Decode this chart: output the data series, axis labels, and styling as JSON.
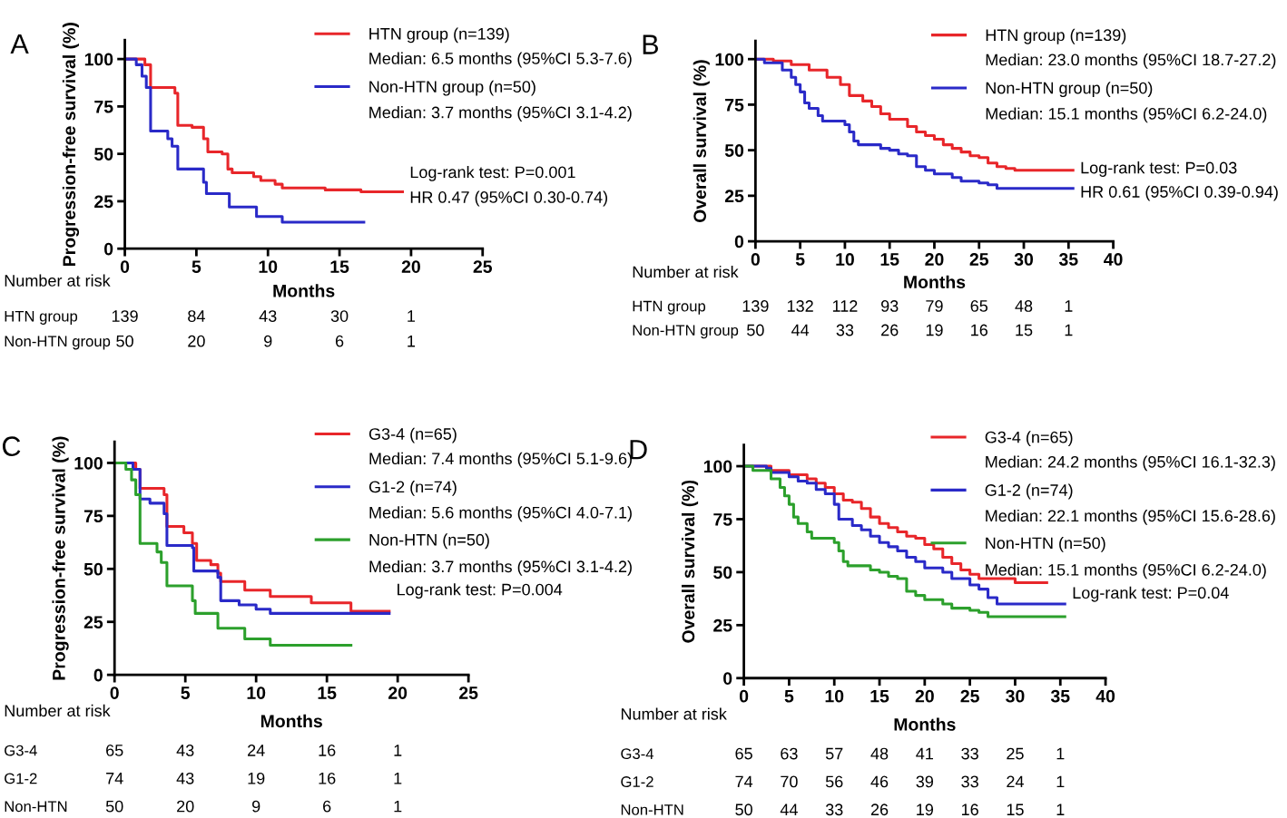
{
  "chart_data": [
    {
      "type": "step",
      "title": "A",
      "xlabel": "Months",
      "ylabel": "Progression-free survival (%)",
      "xlim": [
        0,
        25
      ],
      "xticks": [
        0,
        5,
        10,
        15,
        20,
        25
      ],
      "ylim": [
        0,
        110
      ],
      "yticks": [
        0,
        25,
        50,
        75,
        100
      ],
      "legend": "top right",
      "series": [
        {
          "name": "HTN group (n=139)",
          "color": "#e8262a",
          "x": [
            0,
            1.4,
            1.5,
            1.8,
            3.5,
            3.7,
            4.7,
            5.5,
            5.8,
            6.8,
            7.2,
            7.5,
            9,
            9.5,
            10.5,
            11,
            14,
            16.5,
            19.4
          ],
          "values": [
            100,
            97,
            97,
            85,
            82,
            65,
            64,
            58,
            51,
            50,
            42,
            40,
            38,
            36,
            34,
            32,
            31,
            30,
            30
          ]
        },
        {
          "name": "Non-HTN group (n=50)",
          "color": "#2a2ac8",
          "x": [
            0,
            0.8,
            1.2,
            1.5,
            1.8,
            3,
            3.3,
            3.7,
            5.5,
            5.7,
            7.3,
            9.2,
            11,
            16.7
          ],
          "values": [
            100,
            97,
            91,
            85,
            62,
            58,
            54,
            42,
            35,
            29,
            22,
            17,
            14,
            14
          ]
        }
      ],
      "annotations": [
        "Median: 6.5 months (95%CI 5.3-7.6)",
        "Median: 3.7 months (95%CI 3.1-4.2)",
        "Log-rank test: P=0.001",
        "HR 0.47 (95%CI 0.30-0.74)",
        "Number at risk",
        "HTN group",
        "139",
        "84",
        "43",
        "30",
        "1",
        "Non-HTN group",
        "50",
        "20",
        "9",
        "6",
        "1"
      ]
    },
    {
      "type": "step",
      "title": "B",
      "xlabel": "Months",
      "ylabel": "Overall survival (%)",
      "xlim": [
        0,
        40
      ],
      "xticks": [
        0,
        5,
        10,
        15,
        20,
        25,
        30,
        35,
        40
      ],
      "ylim": [
        0,
        110
      ],
      "yticks": [
        0,
        25,
        50,
        75,
        100
      ],
      "legend": "top right",
      "series": [
        {
          "name": "HTN group (n=139)",
          "color": "#e8262a",
          "x": [
            0,
            2,
            4,
            6,
            8,
            9.5,
            10.5,
            12,
            13,
            14,
            15,
            17,
            18,
            19,
            20,
            21,
            22,
            23,
            24,
            25,
            26,
            27,
            28,
            29,
            35.5
          ],
          "values": [
            100,
            99,
            97,
            94,
            90,
            86,
            80,
            77,
            74,
            70,
            67,
            63,
            60,
            58,
            56,
            53,
            51,
            49,
            47,
            46,
            43,
            41,
            40,
            39,
            39
          ]
        },
        {
          "name": "Non-HTN group (n=50)",
          "color": "#2a2ac8",
          "x": [
            0,
            1,
            3,
            4,
            4.5,
            5,
            5.5,
            6,
            7,
            7.5,
            10,
            10.5,
            11,
            11.5,
            14,
            15,
            16,
            17,
            18,
            19,
            20,
            22,
            23,
            25,
            26,
            27,
            35.5
          ],
          "values": [
            100,
            98,
            94,
            90,
            86,
            82,
            76,
            73,
            69,
            66,
            64,
            60,
            55,
            53,
            51,
            50,
            48,
            47,
            41,
            39,
            37,
            35,
            33,
            32,
            31,
            29,
            29
          ]
        }
      ],
      "annotations": [
        "Median: 23.0 months (95%CI 18.7-27.2)",
        "Median: 15.1 months (95%CI 6.2-24.0)",
        "Log-rank test: P=0.03",
        "HR 0.61 (95%CI 0.39-0.94)",
        "Number at risk",
        "HTN group",
        "139",
        "132",
        "112",
        "93",
        "79",
        "65",
        "48",
        "1",
        "Non-HTN group",
        "50",
        "44",
        "33",
        "26",
        "19",
        "16",
        "15",
        "1"
      ]
    },
    {
      "type": "step",
      "title": "C",
      "xlabel": "Months",
      "ylabel": "Progression-free survival (%)",
      "xlim": [
        0,
        25
      ],
      "xticks": [
        0,
        5,
        10,
        15,
        20,
        25
      ],
      "ylim": [
        0,
        110
      ],
      "yticks": [
        0,
        25,
        50,
        75,
        100
      ],
      "legend": "top right",
      "series": [
        {
          "name": "G3-4 (n=65)",
          "color": "#e8262a",
          "x": [
            0,
            1.5,
            1.8,
            3.5,
            3.7,
            4.9,
            5.5,
            5.8,
            6.8,
            7.3,
            7.5,
            9.2,
            11,
            13.9,
            16.7,
            19.4
          ],
          "values": [
            100,
            97,
            88,
            85,
            70,
            67,
            62,
            54,
            52,
            48,
            44,
            40,
            37,
            34,
            30,
            30
          ]
        },
        {
          "name": "G1-2 (n=74)",
          "color": "#2a2ac8",
          "x": [
            0,
            1.3,
            1.8,
            2.5,
            3.5,
            3.7,
            5.5,
            5.6,
            7.3,
            7.5,
            8.8,
            10,
            11,
            19.4
          ],
          "values": [
            100,
            97,
            83,
            81,
            76,
            61,
            60,
            49,
            46,
            35,
            33,
            31,
            29,
            29
          ]
        },
        {
          "name": "Non-HTN (n=50)",
          "color": "#2ca02c",
          "x": [
            0,
            0.8,
            1.2,
            1.5,
            1.8,
            3,
            3.3,
            3.7,
            5.5,
            5.7,
            7.3,
            9.2,
            11,
            16.7
          ],
          "values": [
            100,
            97,
            92,
            85,
            62,
            58,
            53,
            42,
            35,
            29,
            22,
            17,
            14,
            14
          ]
        }
      ],
      "annotations": [
        "Median: 7.4 months (95%CI 5.1-9.6)",
        "Median: 5.6 months (95%CI 4.0-7.1)",
        "Median: 3.7 months (95%CI 3.1-4.2)",
        "Log-rank test: P=0.004",
        "Number at risk",
        "G3-4",
        "65",
        "43",
        "24",
        "16",
        "1",
        "G1-2",
        "74",
        "43",
        "19",
        "16",
        "1",
        "Non-HTN",
        "50",
        "20",
        "9",
        "6",
        "1"
      ]
    },
    {
      "type": "step",
      "title": "D",
      "xlabel": "Months",
      "ylabel": "Overall survival (%)",
      "xlim": [
        0,
        40
      ],
      "xticks": [
        0,
        5,
        10,
        15,
        20,
        25,
        30,
        35,
        40
      ],
      "ylim": [
        0,
        110
      ],
      "yticks": [
        0,
        25,
        50,
        75,
        100
      ],
      "legend": "top right",
      "series": [
        {
          "name": "G3-4 (n=65)",
          "color": "#e8262a",
          "x": [
            0,
            3,
            5,
            7,
            8,
            9,
            10,
            11,
            12,
            13,
            14,
            15,
            16,
            17,
            18,
            19,
            20,
            21,
            22,
            23,
            24,
            25,
            26,
            30,
            33.5
          ],
          "values": [
            100,
            98,
            96,
            94,
            92,
            90,
            87,
            84,
            83,
            80,
            76,
            73,
            71,
            69,
            67,
            66,
            63,
            61,
            57,
            54,
            51,
            49,
            47,
            45,
            45
          ]
        },
        {
          "name": "G1-2 (n=74)",
          "color": "#2a2ac8",
          "x": [
            0,
            2.5,
            3,
            5,
            6,
            7,
            8,
            9,
            10,
            10.5,
            12,
            13,
            14,
            15,
            16,
            17,
            18,
            19,
            20,
            22,
            23,
            25,
            26,
            27,
            28,
            35.5
          ],
          "values": [
            100,
            99,
            97,
            95,
            93,
            92,
            89,
            87,
            82,
            75,
            72,
            70,
            67,
            64,
            62,
            60,
            57,
            55,
            52,
            50,
            47,
            44,
            42,
            38,
            35,
            35
          ]
        },
        {
          "name": "Non-HTN (n=50)",
          "color": "#2ca02c",
          "x": [
            0,
            1,
            3,
            4,
            4.5,
            5,
            5.5,
            6,
            7,
            7.5,
            10,
            10.5,
            11,
            11.5,
            14,
            15,
            16,
            17,
            18,
            19,
            20,
            22,
            23,
            25,
            26,
            27,
            35.5
          ],
          "values": [
            100,
            98,
            94,
            90,
            86,
            82,
            76,
            73,
            69,
            66,
            64,
            60,
            55,
            53,
            51,
            50,
            48,
            47,
            41,
            39,
            37,
            35,
            33,
            32,
            31,
            29,
            29
          ]
        }
      ],
      "annotations": [
        "Median: 24.2 months (95%CI 16.1-32.3)",
        "Median: 22.1 months (95%CI 15.6-28.6)",
        "Median: 15.1 months (95%CI 6.2-24.0)",
        "Log-rank test: P=0.04",
        "Number at risk",
        "G3-4",
        "65",
        "63",
        "57",
        "48",
        "41",
        "33",
        "25",
        "1",
        "G1-2",
        "74",
        "70",
        "56",
        "46",
        "39",
        "33",
        "24",
        "1",
        "Non-HTN",
        "50",
        "44",
        "33",
        "26",
        "19",
        "16",
        "15",
        "1"
      ]
    }
  ]
}
